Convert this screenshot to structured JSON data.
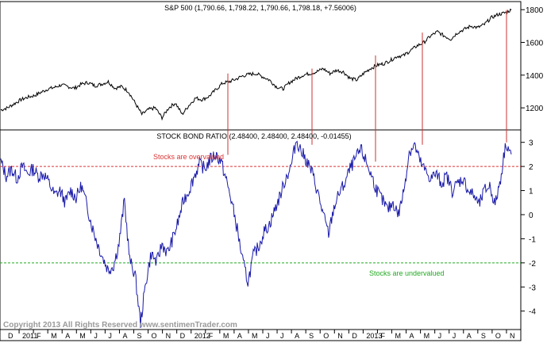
{
  "chart_data": [
    {
      "type": "line",
      "title": "S&P 500 (1,790.66, 1,798.22, 1,790.66, 1,798.18, +7.56006)",
      "y_ticks": [
        1200,
        1400,
        1600,
        1800
      ],
      "ylim": [
        1070,
        1830
      ],
      "series": [
        {
          "values": [
            1187,
            1200,
            1225,
            1250,
            1265,
            1275,
            1295,
            1315,
            1325,
            1340,
            1330,
            1320,
            1345,
            1355,
            1335,
            1345,
            1360,
            1320,
            1330,
            1300,
            1230,
            1160,
            1190,
            1200,
            1140,
            1200,
            1230,
            1160,
            1215,
            1260,
            1250,
            1270,
            1310,
            1350,
            1360,
            1375,
            1395,
            1405,
            1410,
            1390,
            1370,
            1330,
            1315,
            1355,
            1380,
            1400,
            1410,
            1420,
            1440,
            1410,
            1430,
            1420,
            1380,
            1370,
            1410,
            1440,
            1460,
            1470,
            1490,
            1515,
            1520,
            1550,
            1580,
            1600,
            1640,
            1665,
            1640,
            1620,
            1660,
            1680,
            1700,
            1690,
            1710,
            1750,
            1770,
            1780,
            1798
          ]
        }
      ],
      "markers": [
        {
          "from": 1410,
          "to_ratio": 2.48
        },
        {
          "from": 1440,
          "to_ratio": 2.9
        },
        {
          "from": 1520,
          "to_ratio": 2.2
        },
        {
          "from": 1660,
          "to_ratio": 2.9
        },
        {
          "from": 1798,
          "to_ratio": 3.0
        }
      ],
      "marker_color": "#cc3333",
      "line_color": "#000000"
    },
    {
      "type": "line",
      "title": "STOCK BOND RATIO (2.48400, 2.48400, 2.48400, -0.01455)",
      "y_ticks": [
        3,
        2,
        1,
        0,
        -1,
        -2,
        -3,
        -4
      ],
      "ylim": [
        -4.7,
        3.45
      ],
      "series": [
        {
          "values": [
            2.2,
            1.6,
            1.9,
            1.5,
            2.0,
            1.7,
            1.9,
            1.6,
            1.7,
            1.3,
            0.8,
            1.0,
            0.5,
            1.0,
            0.7,
            1.2,
            0.4,
            -0.5,
            -1.2,
            -1.8,
            -2.3,
            -2.1,
            -1.2,
            0.6,
            -1.9,
            -2.5,
            -4.5,
            -2.8,
            -1.6,
            -2.0,
            -1.2,
            -1.6,
            -1.0,
            -0.3,
            0.6,
            1.0,
            1.6,
            2.1,
            1.9,
            2.3,
            2.5,
            2.2,
            1.4,
            0.5,
            -0.6,
            -1.9,
            -2.8,
            -1.7,
            -1.3,
            -0.7,
            -0.4,
            0.2,
            0.8,
            1.5,
            2.0,
            3.1,
            2.6,
            2.2,
            1.7,
            0.9,
            0.0,
            -0.8,
            0.3,
            0.9,
            1.3,
            1.9,
            2.3,
            2.7,
            2.2,
            1.6,
            1.0,
            0.6,
            0.2,
            0.5,
            0.0,
            1.0,
            2.6,
            2.9,
            2.2,
            1.8,
            1.5,
            1.7,
            1.3,
            1.6,
            1.0,
            1.3,
            1.5,
            1.0,
            0.8,
            0.4,
            1.0,
            1.2,
            0.4,
            1.5,
            3.0,
            2.5
          ]
        }
      ],
      "overvalued_level": 2,
      "undervalued_level": -2,
      "overvalued_label": "Stocks are overvalued",
      "undervalued_label": "Stocks are undervalued",
      "overvalued_color": "#dd3333",
      "undervalued_color": "#22aa22",
      "line_color": "#1a1aaa"
    }
  ],
  "x_axis": {
    "labels": [
      "D",
      "2011",
      "F",
      "M",
      "A",
      "M",
      "J",
      "J",
      "A",
      "S",
      "O",
      "N",
      "D",
      "2012",
      "F",
      "M",
      "A",
      "M",
      "J",
      "J",
      "A",
      "S",
      "O",
      "N",
      "D",
      "2013",
      "F",
      "M",
      "A",
      "M",
      "J",
      "J",
      "A",
      "S",
      "O",
      "N"
    ]
  },
  "copyright": "Copyright 2013 All Rights Reserved  www.sentimenTrader.com"
}
